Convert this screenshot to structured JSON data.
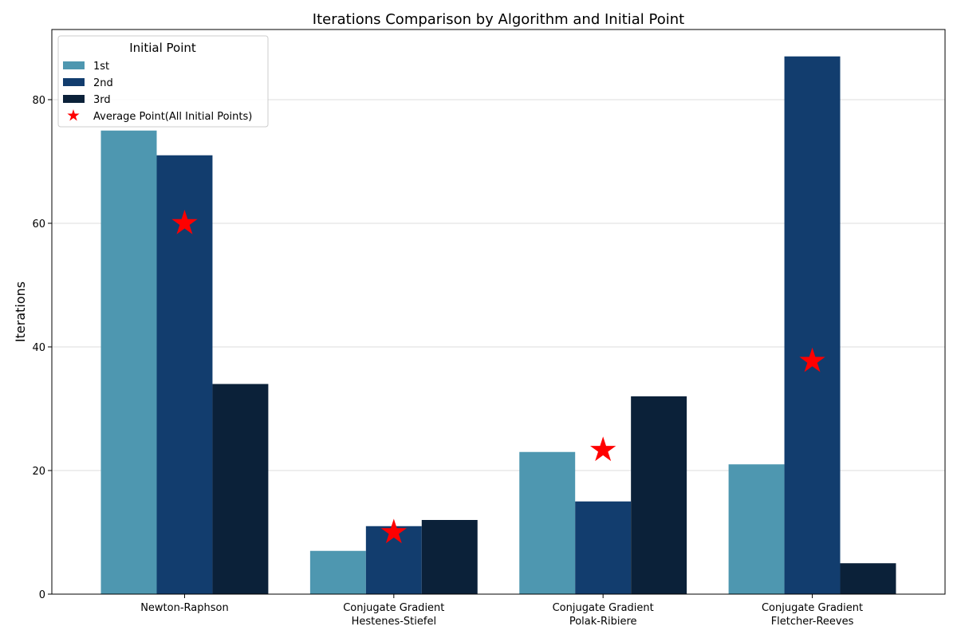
{
  "chart_data": {
    "type": "bar",
    "title": "Iterations Comparison by Algorithm and Initial Point",
    "xlabel": "",
    "ylabel": "Iterations",
    "categories": [
      [
        "Newton-Raphson"
      ],
      [
        "Conjugate Gradient",
        "Hestenes-Stiefel"
      ],
      [
        "Conjugate Gradient",
        "Polak-Ribiere"
      ],
      [
        "Conjugate Gradient",
        "Fletcher-Reeves"
      ]
    ],
    "series": [
      {
        "name": "1st",
        "values": [
          75,
          7,
          23,
          21
        ],
        "color": "#4e97b0"
      },
      {
        "name": "2nd",
        "values": [
          71,
          11,
          15,
          87
        ],
        "color": "#123d6e"
      },
      {
        "name": "3rd",
        "values": [
          34,
          12,
          32,
          5
        ],
        "color": "#0b2139"
      }
    ],
    "markers": {
      "name": "Average Point(All Initial Points)",
      "shape": "star",
      "color": "#ff0000",
      "values": [
        60,
        10,
        23.3,
        37.7
      ]
    },
    "ylim": [
      0,
      91.35
    ],
    "yticks": [
      0,
      20,
      40,
      60,
      80
    ],
    "grid": "horizontal",
    "legend": {
      "title": "Initial Point",
      "placement": "top-left"
    }
  }
}
